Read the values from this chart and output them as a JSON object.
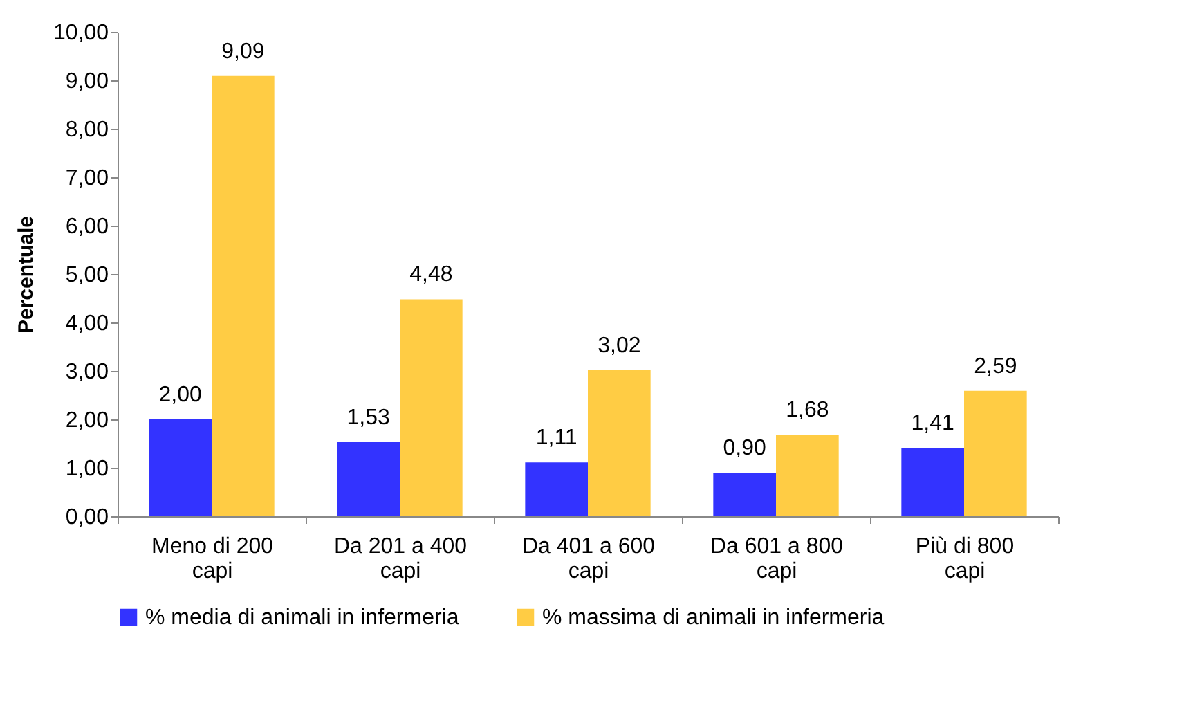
{
  "chart_data": {
    "type": "bar",
    "ylabel": "Percentuale",
    "categories": [
      "Meno di 200 capi",
      "Da 201 a 400 capi",
      "Da 401 a 600 capi",
      "Da 601 a 800 capi",
      "Più di 800 capi"
    ],
    "series": [
      {
        "name": "% media di animali in infermeria",
        "color": "#3333ff",
        "values": [
          2.0,
          1.53,
          1.11,
          0.9,
          1.41
        ],
        "value_labels": [
          "2,00",
          "1,53",
          "1,11",
          "0,90",
          "1,41"
        ]
      },
      {
        "name": "% massima di animali in infermeria",
        "color": "#ffcc44",
        "values": [
          9.09,
          4.48,
          3.02,
          1.68,
          2.59
        ],
        "value_labels": [
          "9,09",
          "4,48",
          "3,02",
          "1,68",
          "2,59"
        ]
      }
    ],
    "ylim": [
      0,
      10
    ],
    "yticks": [
      {
        "value": 0,
        "label": "0,00"
      },
      {
        "value": 1,
        "label": "1,00"
      },
      {
        "value": 2,
        "label": "2,00"
      },
      {
        "value": 3,
        "label": "3,00"
      },
      {
        "value": 4,
        "label": "4,00"
      },
      {
        "value": 5,
        "label": "5,00"
      },
      {
        "value": 6,
        "label": "6,00"
      },
      {
        "value": 7,
        "label": "7,00"
      },
      {
        "value": 8,
        "label": "8,00"
      },
      {
        "value": 9,
        "label": "9,00"
      },
      {
        "value": 10,
        "label": "10,00"
      }
    ],
    "grid": false,
    "legend": "bottom"
  }
}
